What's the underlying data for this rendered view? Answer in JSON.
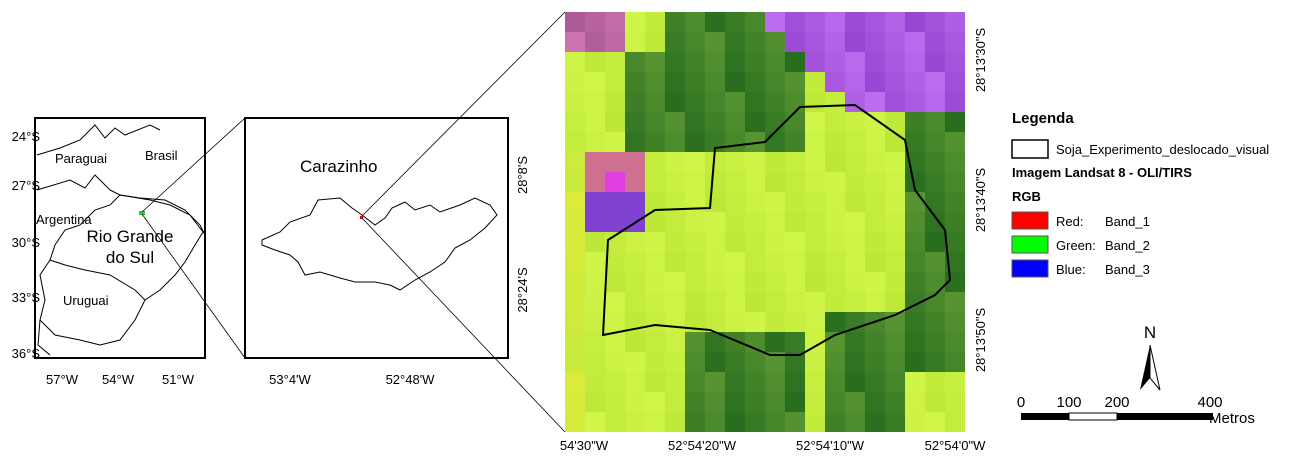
{
  "panels": [
    {
      "lat_labels": [
        "24°S",
        "27°S",
        "30°S",
        "33°S",
        "36°S"
      ],
      "lon_labels": [
        "57°W",
        "54°W",
        "51°W"
      ],
      "places": [
        "Paraguai",
        "Brasil",
        "Argentina",
        "Rio Grande",
        "do Sul",
        "Uruguai"
      ]
    },
    {
      "lat_labels": [
        "28°8'S",
        "28°24'S"
      ],
      "lon_labels": [
        "53°4'W",
        "52°48'W"
      ],
      "places": [
        "Carazinho"
      ]
    },
    {
      "lat_labels": [
        "28°13'30\"S",
        "28°13'40\"S",
        "28°13'50\"S"
      ],
      "lon_labels": [
        "54'30\"W",
        "52°54'20\"W",
        "52°54'10\"W",
        "52°54'0\"W"
      ]
    }
  ],
  "legend": {
    "title": "Legenda",
    "polygon_label": "Soja_Experimento_deslocado_visual",
    "image_title": "Imagem Landsat 8 - OLI/TIRS",
    "rgb_title": "RGB",
    "bands": [
      {
        "channel": "Red:",
        "band": "Band_1",
        "color": "#ff0000"
      },
      {
        "channel": "Green:",
        "band": "Band_2",
        "color": "#00ff00"
      },
      {
        "channel": "Blue:",
        "band": "Band_3",
        "color": "#0000ff"
      }
    ]
  },
  "north": "N",
  "scale": {
    "labels": [
      "0",
      "100",
      "200",
      "400"
    ],
    "unit": "Metros"
  }
}
